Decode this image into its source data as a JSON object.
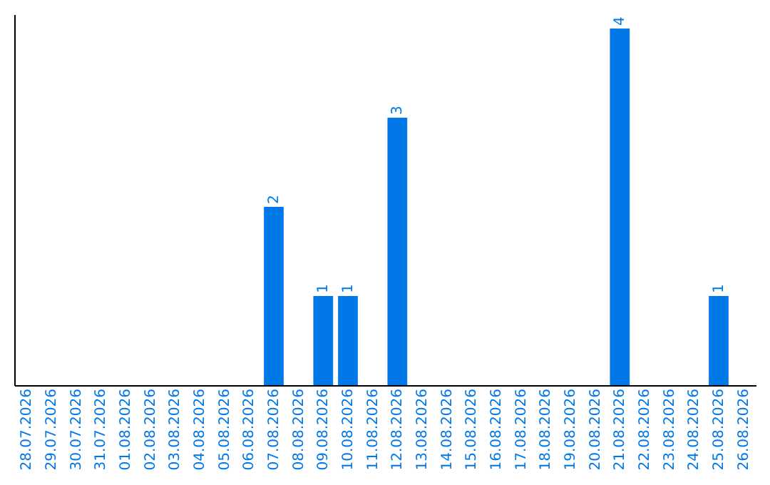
{
  "chart_data": {
    "type": "bar",
    "categories": [
      "28.07.2026",
      "29.07.2026",
      "30.07.2026",
      "31.07.2026",
      "01.08.2026",
      "02.08.2026",
      "03.08.2026",
      "04.08.2026",
      "05.08.2026",
      "06.08.2026",
      "07.08.2026",
      "08.08.2026",
      "09.08.2026",
      "10.08.2026",
      "11.08.2026",
      "12.08.2026",
      "13.08.2026",
      "14.08.2026",
      "15.08.2026",
      "16.08.2026",
      "17.08.2026",
      "18.08.2026",
      "19.08.2026",
      "20.08.2026",
      "21.08.2026",
      "22.08.2026",
      "23.08.2026",
      "24.08.2026",
      "25.08.2026",
      "26.08.2026"
    ],
    "values": [
      0,
      0,
      0,
      0,
      0,
      0,
      0,
      0,
      0,
      0,
      2,
      0,
      1,
      1,
      0,
      3,
      0,
      0,
      0,
      0,
      0,
      0,
      0,
      0,
      4,
      0,
      0,
      0,
      1,
      0
    ],
    "value_labels": [
      null,
      null,
      null,
      null,
      null,
      null,
      null,
      null,
      null,
      null,
      "2",
      null,
      "1",
      "1",
      null,
      "3",
      null,
      null,
      null,
      null,
      null,
      null,
      null,
      null,
      "4",
      null,
      null,
      null,
      "1",
      null
    ],
    "color": "#0078e7",
    "ylim": [
      0,
      4.16
    ],
    "tick_labels": "x",
    "grid": false
  }
}
